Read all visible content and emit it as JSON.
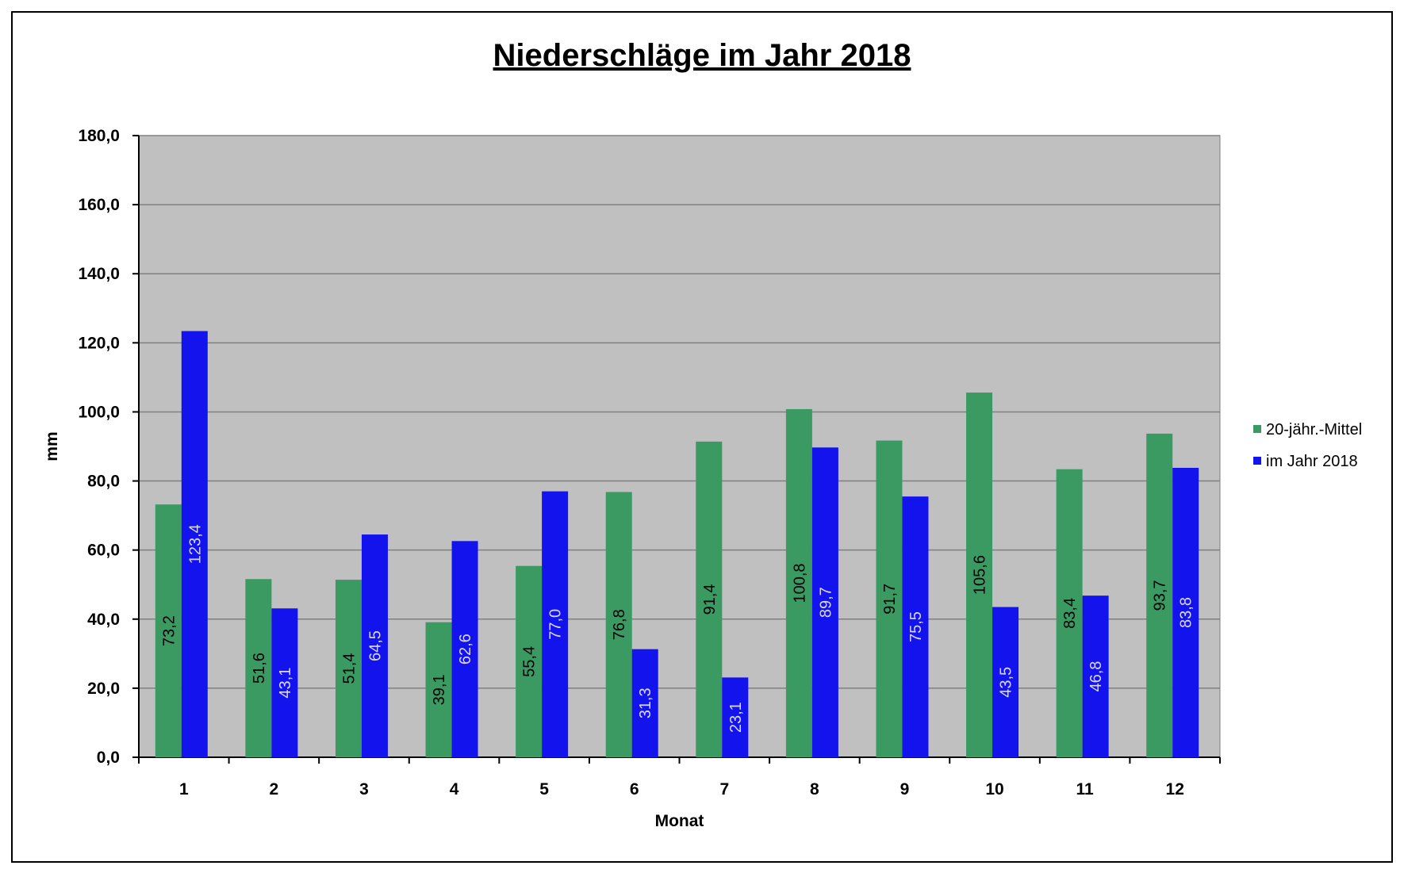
{
  "chart_data": {
    "type": "bar",
    "title": "Niederschläge im Jahr  2018",
    "xlabel": "Monat",
    "ylabel": "mm",
    "categories": [
      "1",
      "2",
      "3",
      "4",
      "5",
      "6",
      "7",
      "8",
      "9",
      "10",
      "11",
      "12"
    ],
    "yticks": [
      "0,0",
      "20,0",
      "40,0",
      "60,0",
      "80,0",
      "100,0",
      "120,0",
      "140,0",
      "160,0",
      "180,0"
    ],
    "ylim": [
      0,
      180
    ],
    "grid": true,
    "legend_position": "right",
    "series": [
      {
        "name": "20-jähr.-Mittel",
        "color": "#3a9a62",
        "label_color": "#000000",
        "values": [
          73.2,
          51.6,
          51.4,
          39.1,
          55.4,
          76.8,
          91.4,
          100.8,
          91.7,
          105.6,
          83.4,
          93.7
        ],
        "labels": [
          "73,2",
          "51,6",
          "51,4",
          "39,1",
          "55,4",
          "76,8",
          "91,4",
          "100,8",
          "91,7",
          "105,6",
          "83,4",
          "93,7"
        ]
      },
      {
        "name": "im Jahr 2018",
        "color": "#1313ee",
        "label_color": "#d8d8f4",
        "values": [
          123.4,
          43.1,
          64.5,
          62.6,
          77.0,
          31.3,
          23.1,
          89.7,
          75.5,
          43.5,
          46.8,
          83.8
        ],
        "labels": [
          "123,4",
          "43,1",
          "64,5",
          "62,6",
          "77,0",
          "31,3",
          "23,1",
          "89,7",
          "75,5",
          "43,5",
          "46,8",
          "83,8"
        ]
      }
    ],
    "plot_background": "#c0c0c0"
  }
}
